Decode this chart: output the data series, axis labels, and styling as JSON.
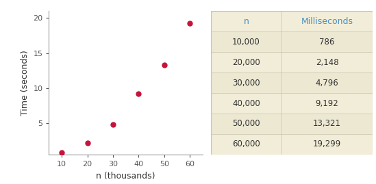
{
  "x_values": [
    10,
    20,
    30,
    40,
    50,
    60
  ],
  "y_values": [
    0.786,
    2.148,
    4.796,
    9.192,
    13.321,
    19.299
  ],
  "x_label": "n (thousands)",
  "y_label": "Time (seconds)",
  "x_ticks": [
    10,
    20,
    30,
    40,
    50,
    60
  ],
  "y_ticks": [
    5,
    10,
    15,
    20
  ],
  "xlim": [
    5,
    65
  ],
  "ylim": [
    0.5,
    21
  ],
  "dot_color": "#c4143c",
  "dot_size": 25,
  "table_headers": [
    "n",
    "Milliseconds"
  ],
  "table_n": [
    "10,000",
    "20,000",
    "30,000",
    "40,000",
    "50,000",
    "60,000"
  ],
  "table_ms": [
    "786",
    "2,148",
    "4,796",
    "9,192",
    "13,321",
    "19,299"
  ],
  "table_bg": "#f2edd8",
  "table_row_alt": "#ede8d2",
  "table_header_color": "#4a90c4",
  "table_text_color": "#333333",
  "header_fontsize": 9,
  "data_fontsize": 8.5,
  "tick_fontsize": 8,
  "label_fontsize": 9,
  "spine_color": "#999999"
}
